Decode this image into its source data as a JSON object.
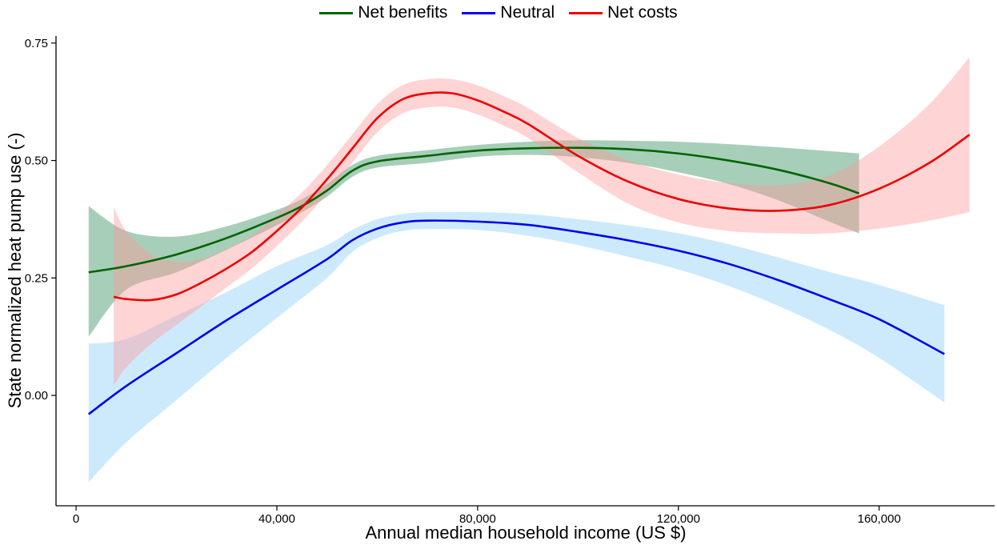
{
  "chart_data": {
    "type": "line",
    "title": "",
    "xlabel": "Annual median household income (US $)",
    "ylabel": "State normalized heat pump use (-)",
    "xlim": [
      -4000,
      183000
    ],
    "ylim": [
      -0.235,
      0.765
    ],
    "x_ticks": [
      0,
      40000,
      80000,
      120000,
      160000
    ],
    "x_tick_labels": [
      "0",
      "40,000",
      "80,000",
      "120,000",
      "160,000"
    ],
    "y_ticks": [
      0,
      0.25,
      0.5,
      0.75
    ],
    "y_tick_labels": [
      "0.00",
      "0.25",
      "0.50",
      "0.75"
    ],
    "grid": false,
    "legend_position": "top",
    "series": [
      {
        "name": "Net benefits",
        "color": "#006400",
        "band_color": "#2e8b57",
        "x": [
          2500,
          10000,
          20000,
          30000,
          40000,
          45000,
          50000,
          55000,
          60000,
          70000,
          80000,
          90000,
          100000,
          110000,
          120000,
          130000,
          140000,
          150000,
          156000
        ],
        "y": [
          0.262,
          0.275,
          0.3,
          0.335,
          0.378,
          0.403,
          0.436,
          0.478,
          0.498,
          0.51,
          0.521,
          0.526,
          0.527,
          0.524,
          0.515,
          0.5,
          0.48,
          0.452,
          0.43
        ],
        "lower": [
          0.125,
          0.225,
          0.262,
          0.31,
          0.362,
          0.39,
          0.423,
          0.465,
          0.485,
          0.495,
          0.508,
          0.512,
          0.507,
          0.495,
          0.475,
          0.45,
          0.415,
          0.37,
          0.345
        ],
        "upper": [
          0.403,
          0.35,
          0.338,
          0.36,
          0.395,
          0.418,
          0.45,
          0.49,
          0.51,
          0.522,
          0.533,
          0.54,
          0.543,
          0.542,
          0.54,
          0.535,
          0.528,
          0.52,
          0.515
        ]
      },
      {
        "name": "Neutral",
        "color": "#0000ee",
        "band_color": "#87cefa",
        "x": [
          2500,
          10000,
          20000,
          30000,
          40000,
          50000,
          55000,
          60000,
          65000,
          70000,
          80000,
          90000,
          100000,
          110000,
          120000,
          130000,
          140000,
          150000,
          160000,
          173000
        ],
        "y": [
          -0.04,
          0.02,
          0.09,
          0.16,
          0.225,
          0.29,
          0.33,
          0.355,
          0.368,
          0.372,
          0.37,
          0.363,
          0.348,
          0.33,
          0.308,
          0.28,
          0.245,
          0.205,
          0.162,
          0.088
        ],
        "lower": [
          -0.185,
          -0.1,
          -0.01,
          0.08,
          0.165,
          0.25,
          0.305,
          0.335,
          0.35,
          0.354,
          0.352,
          0.34,
          0.32,
          0.295,
          0.268,
          0.233,
          0.19,
          0.14,
          0.08,
          -0.015
        ],
        "upper": [
          0.11,
          0.12,
          0.17,
          0.22,
          0.275,
          0.32,
          0.352,
          0.375,
          0.386,
          0.39,
          0.39,
          0.386,
          0.375,
          0.362,
          0.345,
          0.322,
          0.293,
          0.263,
          0.235,
          0.192
        ]
      },
      {
        "name": "Net costs",
        "color": "#ee0000",
        "band_color": "#ff9999",
        "x": [
          7500,
          10000,
          15000,
          20000,
          25000,
          30000,
          35000,
          40000,
          45000,
          50000,
          55000,
          60000,
          65000,
          70000,
          75000,
          80000,
          85000,
          90000,
          100000,
          110000,
          120000,
          130000,
          140000,
          150000,
          160000,
          170000,
          178000
        ],
        "y": [
          0.21,
          0.205,
          0.203,
          0.215,
          0.24,
          0.27,
          0.305,
          0.35,
          0.4,
          0.46,
          0.525,
          0.59,
          0.63,
          0.643,
          0.643,
          0.628,
          0.605,
          0.578,
          0.51,
          0.455,
          0.418,
          0.398,
          0.393,
          0.405,
          0.44,
          0.495,
          0.555
        ],
        "lower": [
          0.02,
          0.06,
          0.11,
          0.15,
          0.19,
          0.23,
          0.27,
          0.318,
          0.37,
          0.43,
          0.495,
          0.56,
          0.6,
          0.613,
          0.613,
          0.598,
          0.575,
          0.548,
          0.475,
          0.408,
          0.368,
          0.35,
          0.345,
          0.345,
          0.355,
          0.372,
          0.39
        ],
        "upper": [
          0.4,
          0.35,
          0.3,
          0.285,
          0.29,
          0.312,
          0.34,
          0.385,
          0.432,
          0.49,
          0.555,
          0.62,
          0.66,
          0.673,
          0.673,
          0.66,
          0.638,
          0.612,
          0.548,
          0.5,
          0.47,
          0.452,
          0.448,
          0.468,
          0.53,
          0.62,
          0.72
        ]
      }
    ]
  }
}
